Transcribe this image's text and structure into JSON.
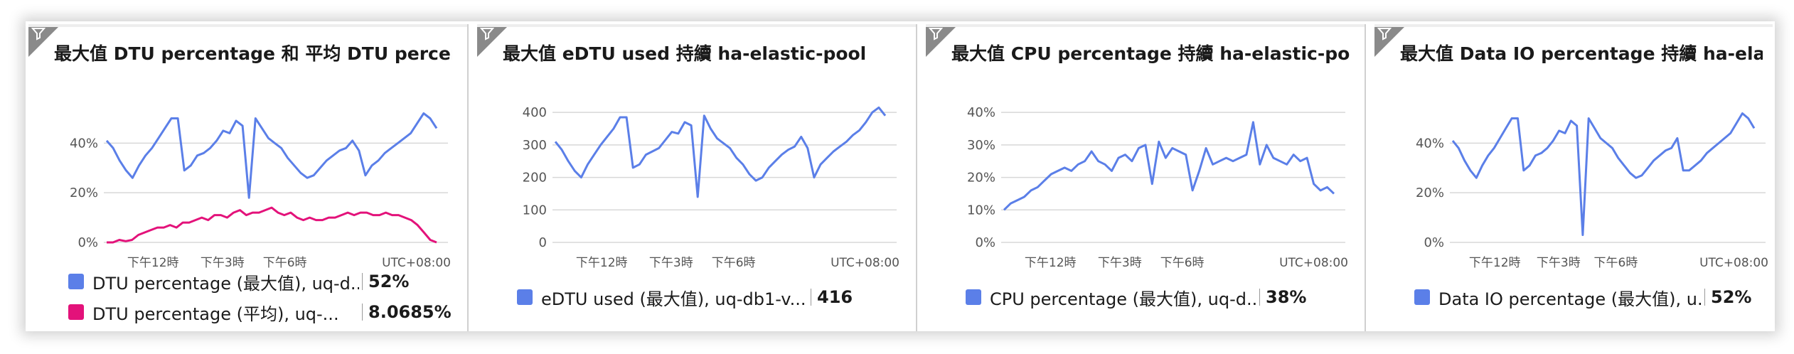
{
  "colors": {
    "blue": "#5b7fe8",
    "pink": "#e3127a",
    "grid": "#d8d8d8",
    "gray": "#8a8a8a"
  },
  "tiles": [
    {
      "title": "最大值 DTU percentage 和 平均 DTU percen...",
      "y_ticks": [
        "40%",
        "20%",
        "0%"
      ],
      "x_ticks": [
        "下午12時",
        "下午3時",
        "下午6時"
      ],
      "timezone": "UTC+08:00",
      "legend": [
        {
          "label": "DTU percentage (最大值), uq-d...",
          "value": "52%",
          "color": "#5b7fe8"
        },
        {
          "label": "DTU percentage (平均), uq-...",
          "value": "8.0685%",
          "color": "#e3127a"
        }
      ]
    },
    {
      "title": "最大值 eDTU used 持續 ha-elastic-pool",
      "y_ticks": [
        "400",
        "300",
        "200",
        "100",
        "0"
      ],
      "x_ticks": [
        "下午12時",
        "下午3時",
        "下午6時"
      ],
      "timezone": "UTC+08:00",
      "legend": [
        {
          "label": "eDTU used (最大值), uq-db1-v...",
          "value": "416",
          "color": "#5b7fe8"
        }
      ]
    },
    {
      "title": "最大值 CPU percentage 持續 ha-elastic-pool",
      "y_ticks": [
        "40%",
        "30%",
        "20%",
        "10%",
        "0%"
      ],
      "x_ticks": [
        "下午12時",
        "下午3時",
        "下午6時"
      ],
      "timezone": "UTC+08:00",
      "legend": [
        {
          "label": "CPU percentage (最大值), uq-d...",
          "value": "38%",
          "color": "#5b7fe8"
        }
      ]
    },
    {
      "title": "最大值 Data IO percentage 持續 ha-elastic-...",
      "y_ticks": [
        "40%",
        "20%",
        "0%"
      ],
      "x_ticks": [
        "下午12時",
        "下午3時",
        "下午6時"
      ],
      "timezone": "UTC+08:00",
      "legend": [
        {
          "label": "Data IO percentage (最大值), u...",
          "value": "52%",
          "color": "#5b7fe8"
        }
      ]
    }
  ],
  "chart_data": [
    {
      "type": "line",
      "title": "最大值 DTU percentage 和 平均 DTU percen...",
      "xlabel": "",
      "ylabel": "",
      "ylim": [
        0,
        55
      ],
      "x_ticks": [
        "下午12時",
        "下午3時",
        "下午6時"
      ],
      "series": [
        {
          "name": "DTU percentage (最大值), uq-d...",
          "color": "#5b7fe8",
          "values": [
            41,
            38,
            33,
            29,
            26,
            31,
            35,
            38,
            42,
            46,
            50,
            50,
            29,
            31,
            35,
            36,
            38,
            41,
            45,
            44,
            49,
            47,
            18,
            50,
            46,
            42,
            40,
            38,
            34,
            31,
            28,
            26,
            27,
            30,
            33,
            35,
            37,
            38,
            41,
            37,
            27,
            31,
            33,
            36,
            38,
            40,
            42,
            44,
            48,
            52,
            50,
            46
          ]
        },
        {
          "name": "DTU percentage (平均), uq-...",
          "color": "#e3127a",
          "values": [
            0,
            0,
            1,
            0.5,
            1,
            3,
            4,
            5,
            6,
            6,
            7,
            6,
            8,
            8,
            9,
            10,
            9,
            11,
            11,
            10,
            12,
            13,
            11,
            12,
            12,
            13,
            14,
            12,
            11,
            12,
            10,
            9,
            10,
            9,
            9,
            10,
            10,
            11,
            12,
            11,
            12,
            12,
            11,
            11,
            12,
            11,
            11,
            10,
            9,
            7,
            4,
            1,
            0
          ]
        }
      ]
    },
    {
      "type": "line",
      "title": "最大值 eDTU used 持續 ha-elastic-pool",
      "xlabel": "",
      "ylabel": "",
      "ylim": [
        0,
        420
      ],
      "x_ticks": [
        "下午12時",
        "下午3時",
        "下午6時"
      ],
      "series": [
        {
          "name": "eDTU used (最大值), uq-db1-v...",
          "color": "#5b7fe8",
          "values": [
            310,
            285,
            250,
            220,
            200,
            240,
            270,
            300,
            325,
            350,
            385,
            385,
            230,
            240,
            270,
            280,
            290,
            315,
            340,
            335,
            370,
            360,
            140,
            390,
            350,
            320,
            305,
            290,
            260,
            240,
            210,
            190,
            200,
            230,
            250,
            270,
            285,
            295,
            325,
            290,
            200,
            240,
            260,
            280,
            295,
            310,
            330,
            345,
            370,
            400,
            415,
            390
          ]
        }
      ]
    },
    {
      "type": "line",
      "title": "最大值 CPU percentage 持續 ha-elastic-pool",
      "xlabel": "",
      "ylabel": "",
      "ylim": [
        0,
        42
      ],
      "x_ticks": [
        "下午12時",
        "下午3時",
        "下午6時"
      ],
      "series": [
        {
          "name": "CPU percentage (最大值), uq-d...",
          "color": "#5b7fe8",
          "values": [
            10,
            12,
            13,
            14,
            16,
            17,
            19,
            21,
            22,
            23,
            22,
            24,
            25,
            28,
            25,
            24,
            22,
            26,
            27,
            25,
            29,
            30,
            18,
            31,
            26,
            29,
            28,
            27,
            16,
            22,
            29,
            24,
            25,
            26,
            25,
            26,
            27,
            37,
            24,
            30,
            26,
            25,
            24,
            27,
            25,
            26,
            18,
            16,
            17,
            15
          ]
        }
      ]
    },
    {
      "type": "line",
      "title": "最大值 Data IO percentage 持續 ha-elastic-...",
      "xlabel": "",
      "ylabel": "",
      "ylim": [
        0,
        55
      ],
      "x_ticks": [
        "下午12時",
        "下午3時",
        "下午6時"
      ],
      "series": [
        {
          "name": "Data IO percentage (最大值), u...",
          "color": "#5b7fe8",
          "values": [
            41,
            38,
            33,
            29,
            26,
            31,
            35,
            38,
            42,
            46,
            50,
            50,
            29,
            31,
            35,
            36,
            38,
            41,
            45,
            44,
            49,
            47,
            3,
            50,
            46,
            42,
            40,
            38,
            34,
            31,
            28,
            26,
            27,
            30,
            33,
            35,
            37,
            38,
            42,
            29,
            29,
            31,
            33,
            36,
            38,
            40,
            42,
            44,
            48,
            52,
            50,
            46
          ]
        }
      ]
    }
  ]
}
